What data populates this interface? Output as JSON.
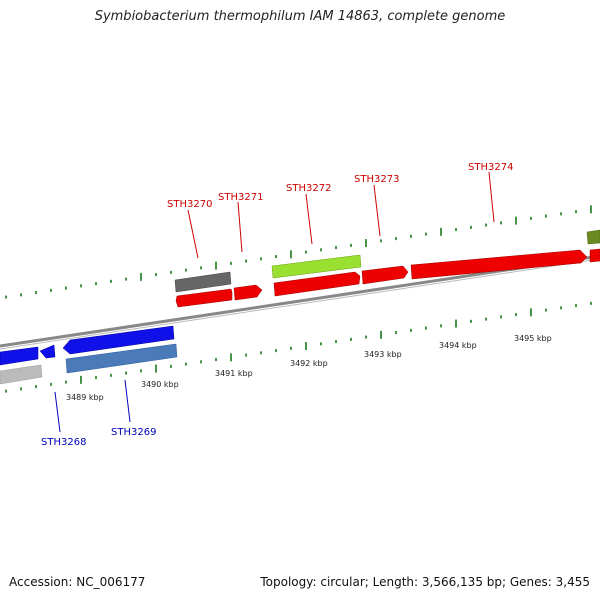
{
  "title": "Symbiobacterium thermophilum IAM 14863, complete genome",
  "footer": {
    "accession": "Accession: NC_006177",
    "stats": "Topology: circular; Length: 3,566,135 bp; Genes: 3,455"
  },
  "colors": {
    "forward_gene": "#ee0000",
    "reverse_gene": "#1010e8",
    "reverse_gene_secondary": "#4a7ab8",
    "reverse_gene_grey": "#bbbbbb",
    "forward_grey": "#666666",
    "forward_light_green": "#99e030",
    "forward_olive": "#6a8a20",
    "backbone": "#888888",
    "ticks": "#1a7a1a",
    "forward_label": "#cc0000",
    "reverse_label": "#0000bb"
  },
  "scale": {
    "kbp_labels": [
      "3489 kbp",
      "3490 kbp",
      "3491 kbp",
      "3492 kbp",
      "3493 kbp",
      "3494 kbp",
      "3495 kbp"
    ]
  },
  "gene_labels": {
    "forward": [
      "STH3270",
      "STH3271",
      "STH3272",
      "STH3273",
      "STH3274"
    ],
    "reverse": [
      "STH3268",
      "STH3269"
    ]
  }
}
